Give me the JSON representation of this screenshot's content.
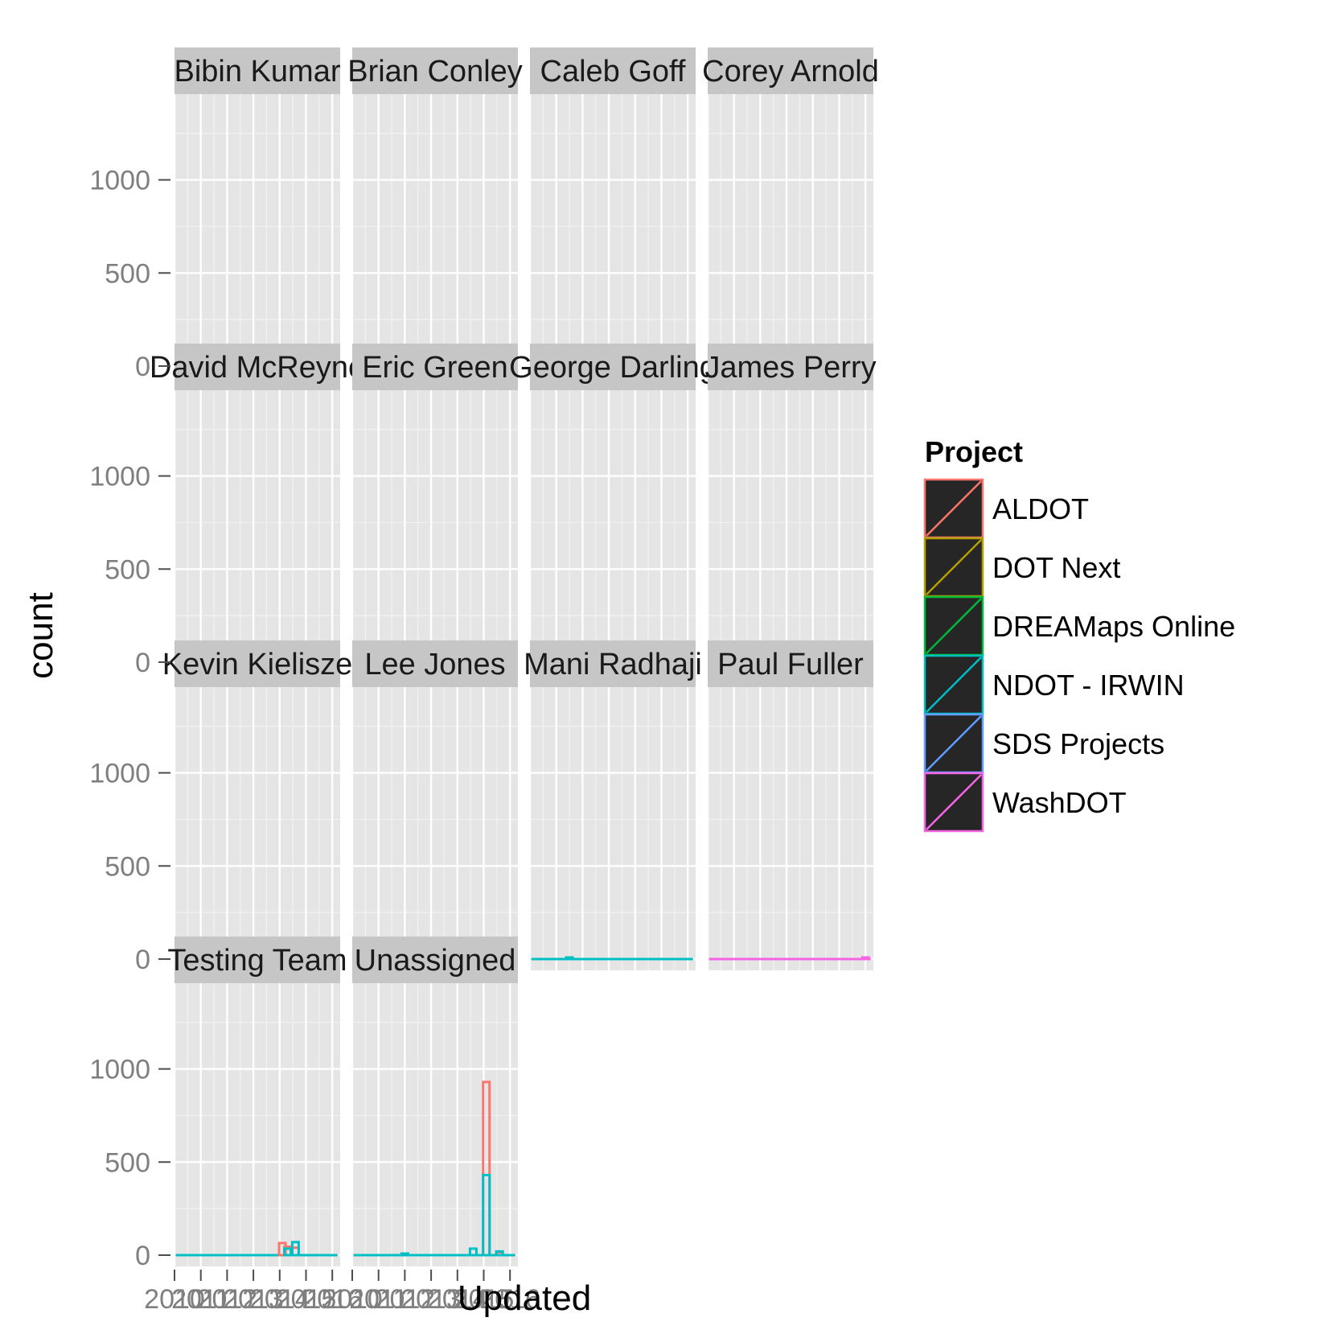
{
  "chart_data": {
    "type": "histogram",
    "facet_by": "Assignee",
    "x_label": "Updated",
    "y_label": "count",
    "y_range": [
      0,
      1400
    ],
    "y_ticks": [
      0,
      500,
      1000
    ],
    "x_range": [
      2010.0,
      2016.3
    ],
    "x_ticks": [
      2010,
      2011,
      2012,
      2013,
      2014,
      2015,
      2016
    ],
    "x_tick_labels": [
      "2010",
      "2011",
      "2012",
      "2013",
      "2014",
      "2015",
      "2016"
    ],
    "grid": true,
    "legend": {
      "title": "Project",
      "position": "right",
      "items": [
        {
          "label": "ALDOT",
          "color": "#F8766D"
        },
        {
          "label": "DOT Next",
          "color": "#B79F00"
        },
        {
          "label": "DREAMaps Online",
          "color": "#00BA38"
        },
        {
          "label": "NDOT - IRWIN",
          "color": "#00BFC4"
        },
        {
          "label": "SDS Projects",
          "color": "#619CFF"
        },
        {
          "label": "WashDOT",
          "color": "#F564E3"
        }
      ]
    },
    "facets": [
      {
        "label": "Bibin Kumar",
        "series": [
          {
            "project": "ALDOT",
            "bins": []
          }
        ]
      },
      {
        "label": "Brian Conley",
        "series": [
          {
            "project": "NDOT - IRWIN",
            "bins": [
              {
                "x": 2012.2,
                "count": 8
              },
              {
                "x": 2014.5,
                "count": 15
              }
            ]
          }
        ]
      },
      {
        "label": "Caleb Goff",
        "series": [
          {
            "project": "ALDOT",
            "bins": []
          }
        ]
      },
      {
        "label": "Corey Arnold",
        "series": [
          {
            "project": "ALDOT",
            "bins": []
          }
        ]
      },
      {
        "label": "David McReyno",
        "series": [
          {
            "project": "SDS Projects",
            "bins": []
          }
        ]
      },
      {
        "label": "Eric Green",
        "series": [
          {
            "project": "DREAMaps Online",
            "bins": [
              {
                "x": 2011.1,
                "count": 6
              }
            ]
          }
        ]
      },
      {
        "label": "George Darling",
        "series": [
          {
            "project": "DREAMaps Online",
            "bins": [
              {
                "x": 2015.9,
                "count": 5
              }
            ]
          }
        ]
      },
      {
        "label": "James Perry",
        "series": [
          {
            "project": "NDOT - IRWIN",
            "bins": [
              {
                "x": 2014.8,
                "count": 6
              }
            ]
          }
        ]
      },
      {
        "label": "Kevin Kielisze",
        "series": [
          {
            "project": "ALDOT",
            "bins": [
              {
                "x": 2015.8,
                "count": 10
              }
            ]
          }
        ]
      },
      {
        "label": "Lee Jones",
        "series": [
          {
            "project": "ALDOT",
            "bins": [
              {
                "x": 2013.4,
                "count": 4
              }
            ]
          }
        ]
      },
      {
        "label": "Mani Radhaji",
        "series": [
          {
            "project": "NDOT - IRWIN",
            "bins": [
              {
                "x": 2011.5,
                "count": 5
              }
            ]
          }
        ]
      },
      {
        "label": "Paul Fuller",
        "series": [
          {
            "project": "WashDOT",
            "bins": [
              {
                "x": 2016.0,
                "count": 8
              }
            ]
          }
        ]
      },
      {
        "label": "Testing Team",
        "series": [
          {
            "project": "ALDOT",
            "bins": [
              {
                "x": 2014.1,
                "count": 65
              },
              {
                "x": 2014.3,
                "count": 45
              },
              {
                "x": 2014.6,
                "count": 40
              }
            ]
          },
          {
            "project": "NDOT - IRWIN",
            "bins": [
              {
                "x": 2014.3,
                "count": 35
              },
              {
                "x": 2014.6,
                "count": 70
              }
            ]
          }
        ]
      },
      {
        "label": "Unassigned",
        "series": [
          {
            "project": "ALDOT",
            "bins": [
              {
                "x": 2015.1,
                "count": 930
              },
              {
                "x": 2015.6,
                "count": 15
              }
            ]
          },
          {
            "project": "NDOT - IRWIN",
            "bins": [
              {
                "x": 2012.0,
                "count": 5
              },
              {
                "x": 2014.6,
                "count": 35
              },
              {
                "x": 2015.1,
                "count": 430
              },
              {
                "x": 2015.6,
                "count": 20
              }
            ]
          }
        ]
      }
    ]
  }
}
